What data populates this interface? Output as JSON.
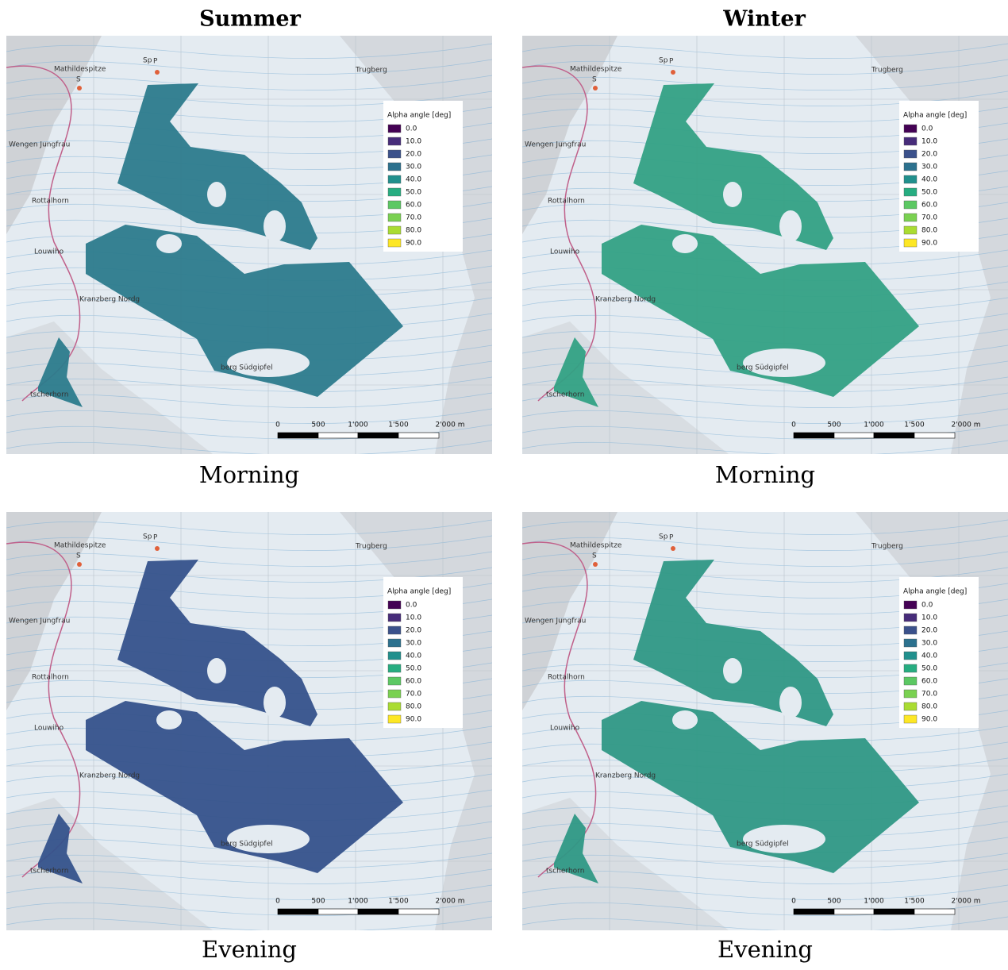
{
  "columns": [
    "Summer",
    "Winter"
  ],
  "panels": [
    {
      "caption": "Morning",
      "overlay_color": "#2c7b8c"
    },
    {
      "caption": "Morning",
      "overlay_color": "#33a184"
    },
    {
      "caption": "Evening",
      "overlay_color": "#35528b"
    },
    {
      "caption": "Evening",
      "overlay_color": "#2f9885"
    }
  ],
  "legend": {
    "title": "Alpha angle [deg]",
    "entries": [
      {
        "label": "0.0",
        "color": "#440154"
      },
      {
        "label": "10.0",
        "color": "#472c7a"
      },
      {
        "label": "20.0",
        "color": "#3b518b"
      },
      {
        "label": "30.0",
        "color": "#2c718e"
      },
      {
        "label": "40.0",
        "color": "#21908d"
      },
      {
        "label": "50.0",
        "color": "#27ad81"
      },
      {
        "label": "60.0",
        "color": "#5cc863"
      },
      {
        "label": "70.0",
        "color": "#7ad151"
      },
      {
        "label": "80.0",
        "color": "#aadc32"
      },
      {
        "label": "90.0",
        "color": "#fde725"
      }
    ]
  },
  "scalebar": [
    "0",
    "500",
    "1'000",
    "1'500",
    "2'000 m"
  ],
  "map_labels": [
    "Mathildespitze",
    "S",
    "Sp",
    "P",
    "Trugberg",
    "Wengen Jungfrau",
    "Rottalhorn",
    "Louwiho",
    "Kranzberg Nordg",
    "berg Südgipfel",
    "tscherhorn"
  ]
}
